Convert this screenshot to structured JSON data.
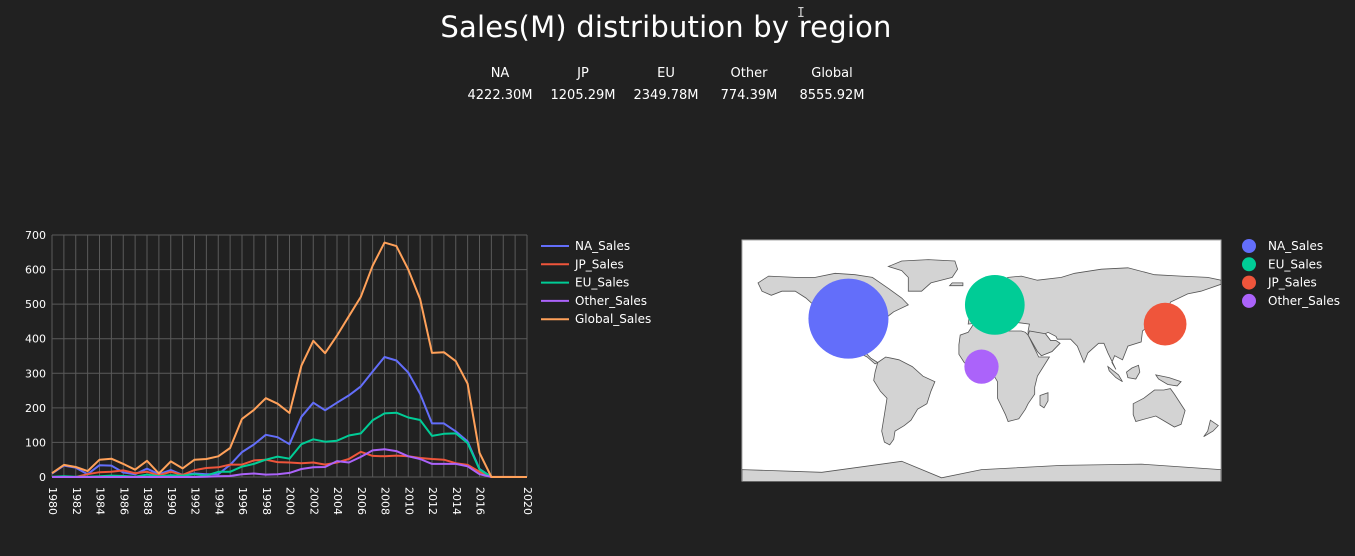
{
  "header": {
    "title": "Sales(M) distribution by region",
    "stats": [
      {
        "label": "NA",
        "value": "4222.30M"
      },
      {
        "label": "JP",
        "value": "1205.29M"
      },
      {
        "label": "EU",
        "value": "2349.78M"
      },
      {
        "label": "Other",
        "value": "774.39M"
      },
      {
        "label": "Global",
        "value": "8555.92M"
      }
    ]
  },
  "colors": {
    "background": "#212121",
    "NA": "#636EFA",
    "JP": "#EF553B",
    "EU": "#00CC96",
    "Other": "#AB63FA",
    "Global": "#FFA15A",
    "land": "#d3d3d3",
    "ocean": "#ffffff"
  },
  "chart_data": [
    {
      "type": "line",
      "x": [
        1980,
        1981,
        1982,
        1983,
        1984,
        1985,
        1986,
        1987,
        1988,
        1989,
        1990,
        1991,
        1992,
        1993,
        1994,
        1995,
        1996,
        1997,
        1998,
        1999,
        2000,
        2001,
        2002,
        2003,
        2004,
        2005,
        2006,
        2007,
        2008,
        2009,
        2010,
        2011,
        2012,
        2013,
        2014,
        2015,
        2016,
        2017,
        2020
      ],
      "series": [
        {
          "name": "NA_Sales",
          "values": [
            10,
            33,
            27,
            8,
            34,
            33,
            13,
            8,
            24,
            8,
            20,
            6,
            10,
            8,
            8,
            35,
            72,
            94,
            122,
            115,
            95,
            174,
            215,
            193,
            215,
            236,
            262,
            305,
            347,
            337,
            302,
            241,
            155,
            155,
            132,
            103,
            23,
            0,
            0
          ]
        },
        {
          "name": "JP_Sales",
          "values": [
            0,
            0,
            0,
            8,
            14,
            15,
            19,
            11,
            15,
            5,
            15,
            6,
            20,
            26,
            28,
            36,
            36,
            48,
            50,
            43,
            42,
            40,
            42,
            36,
            42,
            52,
            73,
            61,
            60,
            62,
            60,
            55,
            52,
            50,
            40,
            35,
            15,
            1,
            0
          ]
        },
        {
          "name": "EU_Sales",
          "values": [
            1,
            2,
            1,
            1,
            2,
            4,
            3,
            1,
            7,
            2,
            5,
            4,
            8,
            4,
            15,
            15,
            30,
            38,
            50,
            59,
            53,
            95,
            109,
            102,
            105,
            120,
            126,
            164,
            184,
            186,
            172,
            165,
            119,
            125,
            126,
            98,
            22,
            0,
            0
          ]
        },
        {
          "name": "Other_Sales",
          "values": [
            0,
            0,
            0,
            0,
            0,
            0,
            0,
            0,
            0,
            0,
            0,
            0,
            0,
            1,
            2,
            3,
            8,
            10,
            7,
            8,
            12,
            23,
            28,
            29,
            46,
            42,
            58,
            77,
            80,
            75,
            60,
            52,
            38,
            38,
            38,
            31,
            8,
            0,
            0
          ]
        },
        {
          "name": "Global_Sales",
          "values": [
            11,
            35,
            29,
            17,
            50,
            53,
            38,
            21,
            47,
            10,
            45,
            25,
            50,
            52,
            60,
            84,
            168,
            194,
            228,
            212,
            185,
            322,
            394,
            358,
            409,
            465,
            521,
            611,
            678,
            668,
            600,
            515,
            359,
            361,
            335,
            270,
            70,
            0,
            0
          ]
        }
      ],
      "x_ticks": [
        1980,
        1982,
        1984,
        1986,
        1988,
        1990,
        1992,
        1994,
        1996,
        1998,
        2000,
        2002,
        2004,
        2006,
        2008,
        2010,
        2012,
        2014,
        2016,
        2020
      ],
      "y_ticks": [
        0,
        100,
        200,
        300,
        400,
        500,
        600,
        700
      ],
      "ylim": [
        0,
        700
      ],
      "grid": true,
      "legend": "right"
    },
    {
      "type": "scatter",
      "map": "world",
      "series": [
        {
          "name": "NA_Sales",
          "value": 4222.3,
          "lon": -100,
          "lat": 40
        },
        {
          "name": "EU_Sales",
          "value": 2349.78,
          "lon": 10,
          "lat": 50
        },
        {
          "name": "JP_Sales",
          "value": 1205.29,
          "lon": 138,
          "lat": 36
        },
        {
          "name": "Other_Sales",
          "value": 774.39,
          "lon": 0,
          "lat": 5
        }
      ],
      "legend": "right"
    }
  ]
}
